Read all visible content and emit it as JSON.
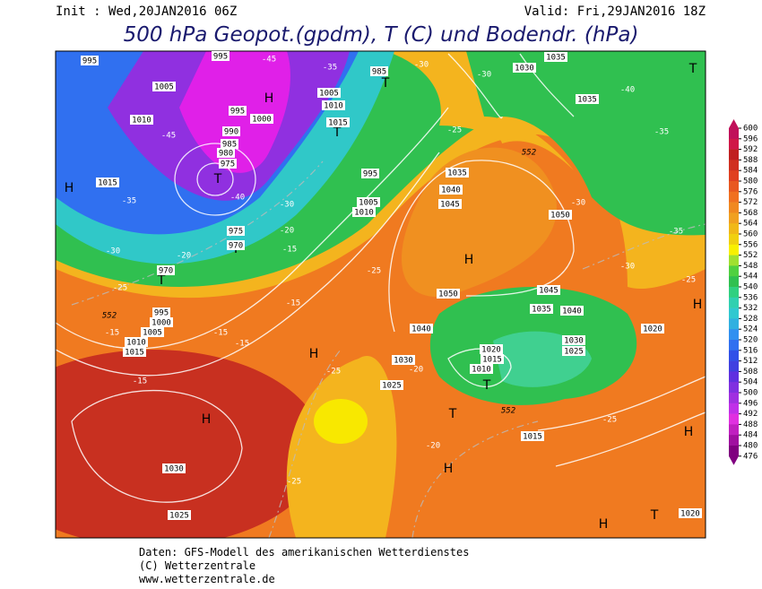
{
  "header": {
    "init": "Init : Wed,20JAN2016 06Z",
    "valid": "Valid: Fri,29JAN2016 18Z",
    "title": "500 hPa Geopot.(gpdm), T (C) und Bodendr. (hPa)"
  },
  "map_labels": [
    "H",
    "H",
    "H",
    "H",
    "H",
    "H",
    "H",
    "H",
    "H",
    "T",
    "T",
    "T",
    "T",
    "T",
    "T",
    "T",
    "T",
    "T",
    "995",
    "1005",
    "1010",
    "1015",
    "995",
    "985",
    "1030",
    "1035",
    "1035",
    "1040",
    "1045",
    "1050",
    "1045",
    "1050",
    "1040",
    "1035",
    "1030",
    "1025",
    "1020",
    "1015",
    "1010",
    "1040",
    "1030",
    "1025",
    "1015",
    "1030",
    "1025",
    "1020",
    "1020",
    "1035",
    "1015",
    "1010",
    "1005",
    "1000",
    "995",
    "970",
    "975",
    "970",
    "995",
    "1005",
    "1010",
    "1005",
    "1010",
    "1015",
    "1000",
    "995",
    "990",
    "985",
    "980",
    "975",
    "-45",
    "-35",
    "-30",
    "-25",
    "-15",
    "-15",
    "-15",
    "-15",
    "-15",
    "-25",
    "-25",
    "-20",
    "-20",
    "-25",
    "-25",
    "-30",
    "-35",
    "-30",
    "-25",
    "-35",
    "-40",
    "-30",
    "-30",
    "-25",
    "-45",
    "-35",
    "-30",
    "-20",
    "-15",
    "-20",
    "-40",
    "552",
    "552",
    "552"
  ],
  "colorbar": {
    "levels": [
      600,
      596,
      592,
      588,
      584,
      580,
      576,
      572,
      568,
      564,
      560,
      556,
      552,
      548,
      544,
      540,
      536,
      532,
      528,
      524,
      520,
      516,
      512,
      508,
      504,
      500,
      496,
      492,
      488,
      484,
      480,
      476
    ],
    "colors": [
      "#c0105a",
      "#d01848",
      "#c02020",
      "#d03020",
      "#e04020",
      "#e85820",
      "#f07020",
      "#f08820",
      "#f0a020",
      "#f0b818",
      "#f0d010",
      "#f8f000",
      "#a0e030",
      "#50d040",
      "#30c050",
      "#30d080",
      "#30d0b0",
      "#30c8d0",
      "#30b0e0",
      "#3090f0",
      "#3070f0",
      "#3050e8",
      "#4040e0",
      "#6030e0",
      "#8030e0",
      "#a030e0",
      "#c030e8",
      "#e030e0",
      "#c020c0",
      "#a010a0",
      "#800080"
    ]
  },
  "footer": {
    "lines": [
      "Daten: GFS-Modell des amerikanischen Wetterdienstes",
      "(C) Wetterzentrale",
      "www.wetterzentrale.de"
    ]
  }
}
